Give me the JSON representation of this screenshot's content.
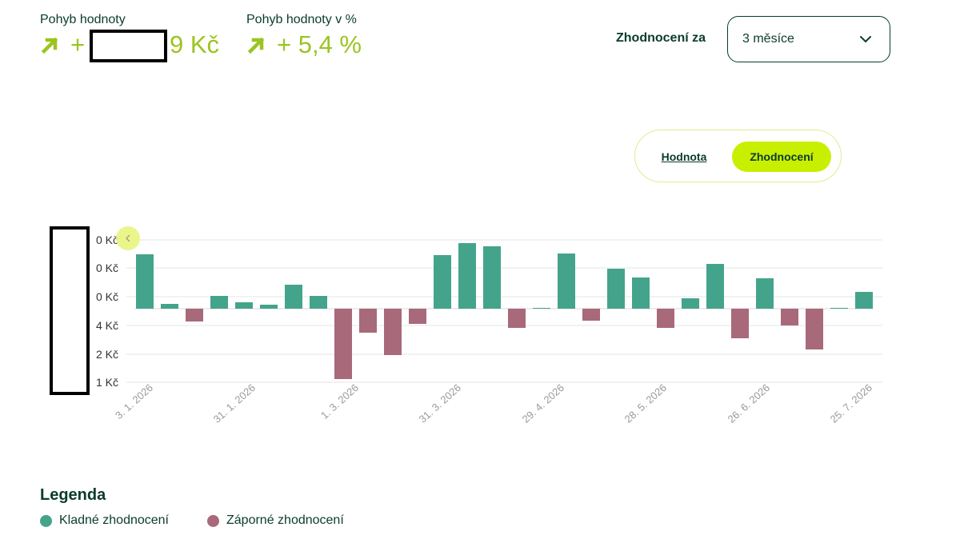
{
  "summary": {
    "move_value": {
      "label": "Pohyb hodnoty",
      "sign": "+",
      "value": "9 Kč",
      "arrow": "arrow-up-right-icon"
    },
    "move_percent": {
      "label": "Pohyb hodnoty v %",
      "value": "+ 5,4 %",
      "arrow": "arrow-up-right-icon"
    }
  },
  "period": {
    "label": "Zhodnocení za",
    "selected": "3 měsíce",
    "icon": "chevron-down-icon"
  },
  "view_toggle": {
    "options": [
      "Hodnota",
      "Zhodnocení"
    ],
    "active": "Zhodnocení"
  },
  "colors": {
    "accent": "#9cc420",
    "positive": "#44a48b",
    "negative": "#a8697a",
    "dark": "#0b3b2e",
    "toggle_active": "#c9ef00"
  },
  "chart_data": {
    "type": "bar",
    "y_tick_labels": [
      "0 Kč",
      "0 Kč",
      "0 Kč",
      "4 Kč",
      "2 Kč",
      "1 Kč"
    ],
    "x_tick_labels": [
      "3. 1. 2026",
      "31. 1. 2026",
      "1. 3. 2026",
      "31. 3. 2026",
      "29. 4. 2026",
      "28. 5. 2026",
      "26. 6. 2026",
      "25. 7. 2026"
    ],
    "values": [
      68,
      6,
      -16,
      16,
      8,
      5,
      30,
      16,
      -88,
      -30,
      -58,
      -19,
      67,
      82,
      78,
      -24,
      1,
      69,
      -15,
      50,
      39,
      -24,
      13,
      56,
      -37,
      38,
      -21,
      -51,
      1,
      21
    ],
    "value_units": "relative bar height (zero baseline), y-axis labels partly hidden",
    "legend_position": "bottom-left",
    "grid": true
  },
  "legend": {
    "title": "Legenda",
    "items": [
      {
        "label": "Kladné zhodnocení",
        "color": "#44a48b"
      },
      {
        "label": "Záporné zhodnocení",
        "color": "#a8697a"
      }
    ]
  },
  "chart_scroll_icon": "chevron-left-icon"
}
